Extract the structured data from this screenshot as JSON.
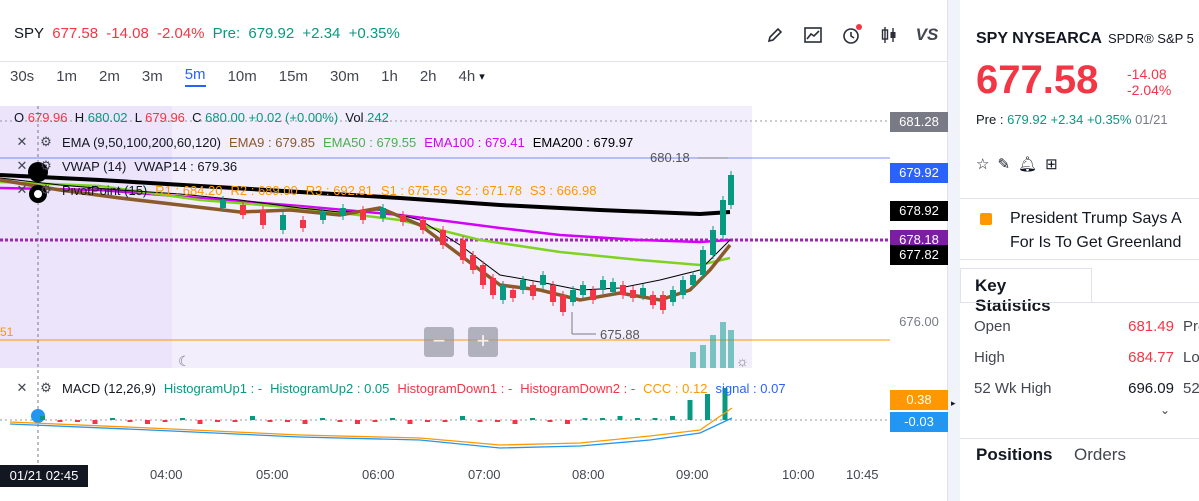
{
  "quote": {
    "symbol": "SPY",
    "price": "677.58",
    "change": "-14.08",
    "change_pct": "-2.04%",
    "pre_label": "Pre:",
    "pre_price": "679.92",
    "pre_change": "+2.34",
    "pre_change_pct": "+0.35%"
  },
  "toolbar": {
    "vs_label": "VS",
    "icons": [
      "pencil-icon",
      "trend-chart-icon",
      "alert-clock-icon",
      "candlestick-icon"
    ]
  },
  "intervals": [
    "30s",
    "1m",
    "2m",
    "3m",
    "5m",
    "10m",
    "15m",
    "30m",
    "1h",
    "2h",
    "4h"
  ],
  "active_interval": "5m",
  "ohlc": {
    "o_label": "O",
    "o": "679.96",
    "h_label": "H",
    "h": "680.02",
    "l_label": "L",
    "l": "679.96",
    "c_label": "C",
    "c": "680.00",
    "chg": "+0.02 (+0.00%)",
    "vol_label": "Vol",
    "vol": "242"
  },
  "ema": {
    "name": "EMA (9,50,100,200,60,120)",
    "ema9": "EMA9 : 679.85",
    "ema50": "EMA50 : 679.55",
    "ema100": "EMA100 : 679.41",
    "ema200": "EMA200 : 679.97"
  },
  "vwap": {
    "name": "VWAP (14)",
    "value": "VWAP14 : 679.36"
  },
  "pivot": {
    "name": "PivotPoint (15)",
    "r1": "R1 : 684.20",
    "r2": "R2 : 689.00",
    "r3": "R3 : 692.81",
    "s1": "S1 : 675.59",
    "s2": "S2 : 671.78",
    "s3": "S3 : 666.98"
  },
  "macd": {
    "name": "MACD (12,26,9)",
    "hu1": "HistogramUp1 : -",
    "hu2": "HistogramUp2 : 0.05",
    "hd1": "HistogramDown1 : -",
    "hd2": "HistogramDown2 : -",
    "ccc": "CCC : 0.12",
    "signal": "signal : 0.07"
  },
  "price_labels": {
    "p1": "681.28",
    "p2": "679.92",
    "p3": "678.92",
    "p4": "678.18",
    "p5": "677.82",
    "p6": "676.00",
    "hi_mark": "680.18",
    "lo_mark": "675.88",
    "m1": "0.38",
    "m2": "-0.03",
    "left_edge": "51"
  },
  "time_axis": [
    "04:00",
    "05:00",
    "06:00",
    "07:00",
    "08:00",
    "09:00",
    "10:00",
    "10:45"
  ],
  "crosshair_time": "01/21 02:45",
  "colors": {
    "red": "#f23645",
    "green": "#089981",
    "blue": "#2962ff",
    "ema50": "#7ed321",
    "ema100": "#d500f9",
    "ema200": "#000000",
    "vwap": "#000000",
    "pivot": "#ff9800"
  },
  "sidebar": {
    "symbol": "SPY NYSEARCA",
    "name": "SPDR® S&P 5",
    "price": "677.58",
    "change": "-14.08",
    "change_pct": "-2.04%",
    "pre_label": "Pre :",
    "pre_price": "679.92",
    "pre_change": "+2.34",
    "pre_change_pct": "+0.35%",
    "pre_date": "01/21",
    "news_line1": "President Trump Says A",
    "news_line2": "For Is To Get Greenland",
    "key_stats_title": "Key Statistics",
    "stats": [
      {
        "k": "Open",
        "v": "681.49",
        "e": "Pre"
      },
      {
        "k": "High",
        "v": "684.77",
        "e": "Lov"
      },
      {
        "k": "52 Wk High",
        "v": "696.09",
        "e": "52"
      }
    ],
    "tab_positions": "Positions",
    "tab_orders": "Orders"
  }
}
